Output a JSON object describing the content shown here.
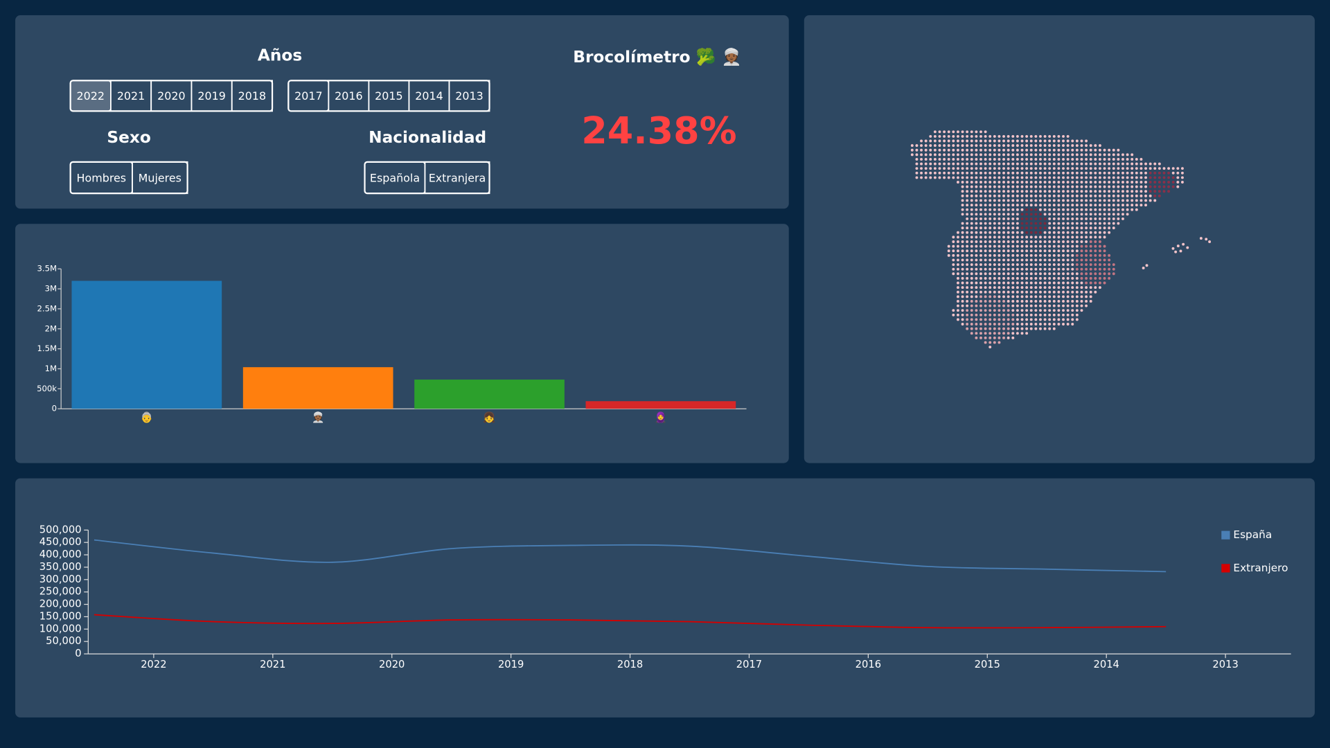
{
  "filters": {
    "years_title": "Años",
    "years_a": [
      "2022",
      "2021",
      "2020",
      "2019",
      "2018"
    ],
    "years_b": [
      "2017",
      "2016",
      "2015",
      "2014",
      "2013"
    ],
    "sex_title": "Sexo",
    "sex": [
      "Hombres",
      "Mujeres"
    ],
    "nat_title": "Nacionalidad",
    "nat": [
      "Española",
      "Extranjera"
    ]
  },
  "gauge": {
    "title": "Brocolímetro 🥦 👳🏾",
    "value": "24.38%"
  },
  "chart_data": [
    {
      "type": "bar",
      "categories": [
        "👵",
        "👳🏾",
        "👧",
        "🧕"
      ],
      "values": [
        3200000,
        1040000,
        730000,
        190000
      ],
      "colors": [
        "#1f77b4",
        "#ff7f0e",
        "#2ca02c",
        "#d62728"
      ],
      "ylim": [
        0,
        3500000
      ],
      "yticks": [
        0,
        {
          "value": 500000,
          "label": "500k"
        },
        {
          "value": 1000000,
          "label": "1M"
        },
        {
          "value": 1500000,
          "label": "1.5M"
        },
        {
          "value": 2000000,
          "label": "2M"
        },
        {
          "value": 2500000,
          "label": "2.5M"
        },
        {
          "value": 3000000,
          "label": "3M"
        },
        {
          "value": 3500000,
          "label": "3.5M"
        }
      ]
    },
    {
      "type": "line",
      "x": [
        2022.5,
        2021.5,
        2020.5,
        2019.5,
        2018.5,
        2017.5,
        2016.5,
        2015.5,
        2014.5,
        2013.5
      ],
      "series": [
        {
          "name": "España",
          "color": "#4a7fb5",
          "values": [
            460000,
            407000,
            370000,
            425000,
            438000,
            435000,
            394000,
            353000,
            342000,
            332000
          ]
        },
        {
          "name": "Extranjero",
          "color": "#d40000",
          "values": [
            158000,
            130000,
            123000,
            137000,
            137000,
            130000,
            116000,
            106000,
            106000,
            110000
          ]
        }
      ],
      "xlim": [
        2022.55,
        2012.45
      ],
      "xticks": [
        2022,
        2021,
        2020,
        2019,
        2018,
        2017,
        2016,
        2015,
        2014,
        2013
      ],
      "ylim": [
        0,
        500000
      ],
      "yticks": [
        0,
        {
          "value": 50000,
          "label": "50,000"
        },
        {
          "value": 100000,
          "label": "100,000"
        },
        {
          "value": 150000,
          "label": "150,000"
        },
        {
          "value": 200000,
          "label": "200,000"
        },
        {
          "value": 250000,
          "label": "250,000"
        },
        {
          "value": 300000,
          "label": "300,000"
        },
        {
          "value": 350000,
          "label": "350,000"
        },
        {
          "value": 400000,
          "label": "400,000"
        },
        {
          "value": 450000,
          "label": "450,000"
        },
        {
          "value": 500000,
          "label": "500,000"
        }
      ],
      "legend": "top-right"
    }
  ]
}
